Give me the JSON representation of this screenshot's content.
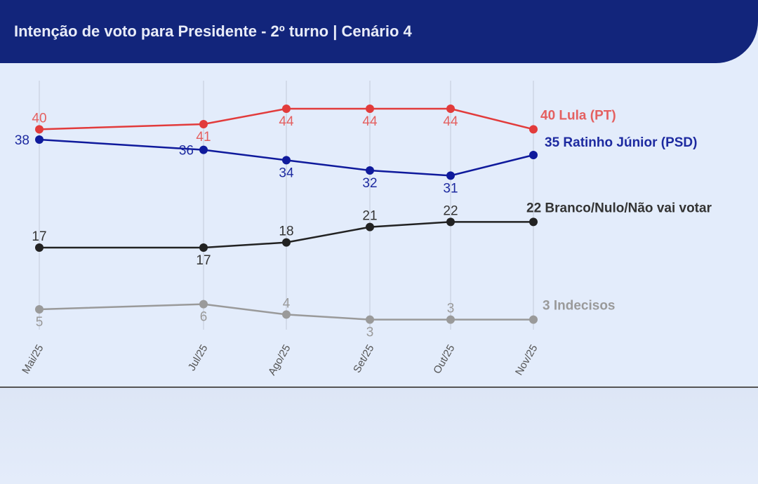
{
  "header": {
    "title": "Intenção de voto para Presidente - 2º turno | Cenário 4"
  },
  "chart_data": {
    "type": "line",
    "title": "Intenção de voto para Presidente - 2º turno | Cenário 4",
    "xlabel": "",
    "ylabel": "",
    "categories": [
      "Mai/25",
      "Jul/25",
      "Ago/25",
      "Set/25",
      "Out/25",
      "Nov/25"
    ],
    "ylim": [
      3,
      44
    ],
    "grid": "vertical",
    "series": [
      {
        "name": "Lula (PT)",
        "end_label": "40 Lula (PT)",
        "color": "#e23b3b",
        "label_color": "#e46060",
        "values": [
          40,
          41,
          44,
          44,
          44,
          40
        ],
        "label_pos": [
          "above",
          "below",
          "below",
          "below",
          "below"
        ]
      },
      {
        "name": "Ratinho Júnior (PSD)",
        "end_label": "35 Ratinho Júnior (PSD)",
        "color": "#0f1a9c",
        "label_color": "#1d2aa0",
        "values": [
          38,
          36,
          34,
          32,
          31,
          35
        ],
        "label_pos": [
          "above",
          "above",
          "below",
          "below",
          "below"
        ]
      },
      {
        "name": "Branco/Nulo/Não vai votar",
        "end_label": "22 Branco/Nulo/Não vai votar",
        "color": "#222222",
        "label_color": "#333333",
        "values": [
          17,
          17,
          18,
          21,
          22,
          22
        ],
        "label_pos": [
          "above",
          "below",
          "above",
          "above",
          "above"
        ]
      },
      {
        "name": "Indecisos",
        "end_label": "3 Indecisos",
        "color": "#9a9a9a",
        "label_color": "#9a9a9a",
        "values": [
          5,
          6,
          4,
          3,
          3,
          3
        ],
        "label_pos": [
          "below",
          "below",
          "above",
          "below",
          "above"
        ]
      }
    ]
  }
}
